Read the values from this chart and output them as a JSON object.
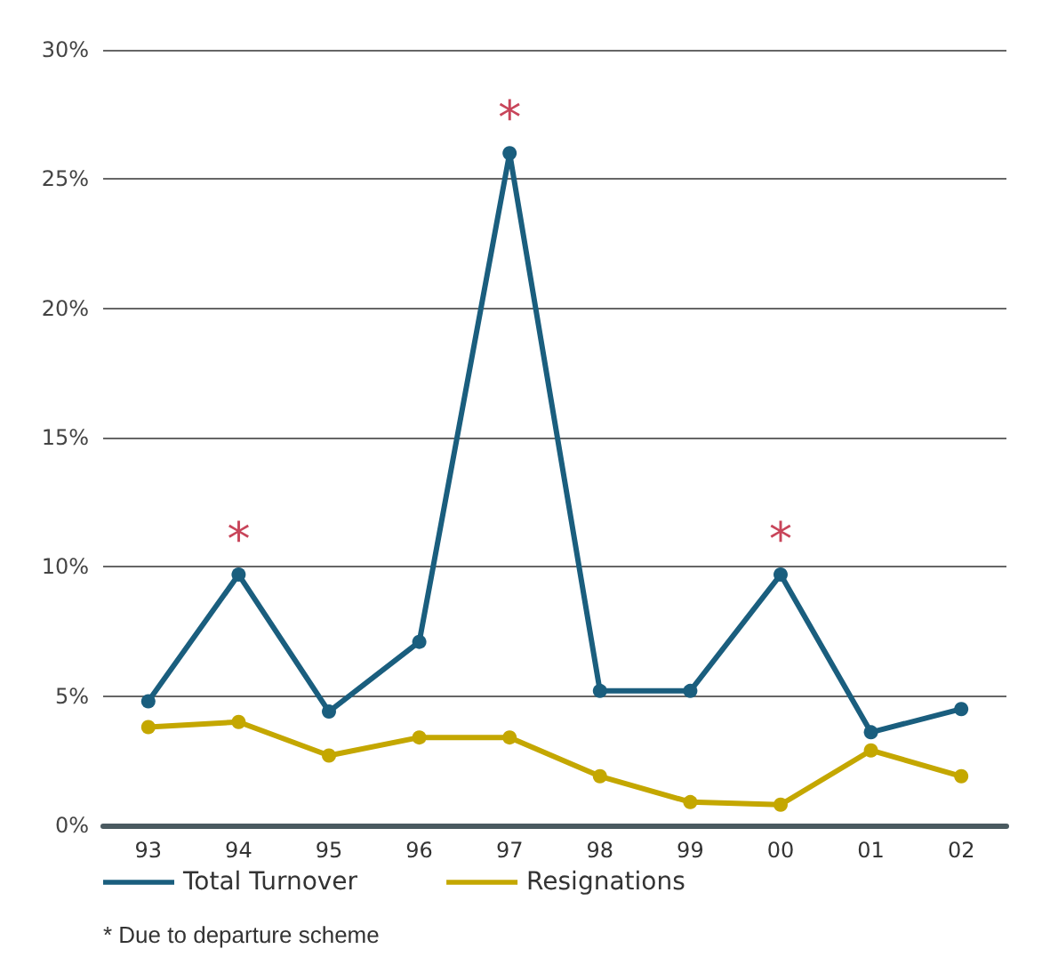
{
  "chart_data": {
    "type": "line",
    "categories": [
      "93",
      "94",
      "95",
      "96",
      "97",
      "98",
      "99",
      "00",
      "01",
      "02"
    ],
    "series": [
      {
        "name": "Total Turnover",
        "color": "#1a5e7e",
        "values": [
          4.8,
          9.7,
          4.4,
          7.1,
          26.0,
          5.2,
          5.2,
          9.7,
          3.6,
          4.5
        ]
      },
      {
        "name": "Resignations",
        "color": "#c4a700",
        "values": [
          3.8,
          4.0,
          2.7,
          3.4,
          3.4,
          1.9,
          0.9,
          0.8,
          2.9,
          1.9
        ]
      }
    ],
    "ylim": [
      0,
      30
    ],
    "yticks": [
      {
        "value": 0,
        "label": "0%"
      },
      {
        "value": 5,
        "label": "5%"
      },
      {
        "value": 10,
        "label": "10%"
      },
      {
        "value": 15,
        "label": "15%"
      },
      {
        "value": 20,
        "label": "20%"
      },
      {
        "value": 25,
        "label": "25%"
      },
      {
        "value": 30,
        "label": "30%"
      }
    ],
    "grid": "y",
    "legend": "bottom left",
    "marker": "circle",
    "line_style": "solid",
    "annotations": [
      {
        "text": "*",
        "x": "94",
        "y": 9.7
      },
      {
        "text": "*",
        "x": "97",
        "y": 26.0
      },
      {
        "text": "*",
        "x": "00",
        "y": 9.7
      },
      "* Due to departure scheme"
    ]
  }
}
